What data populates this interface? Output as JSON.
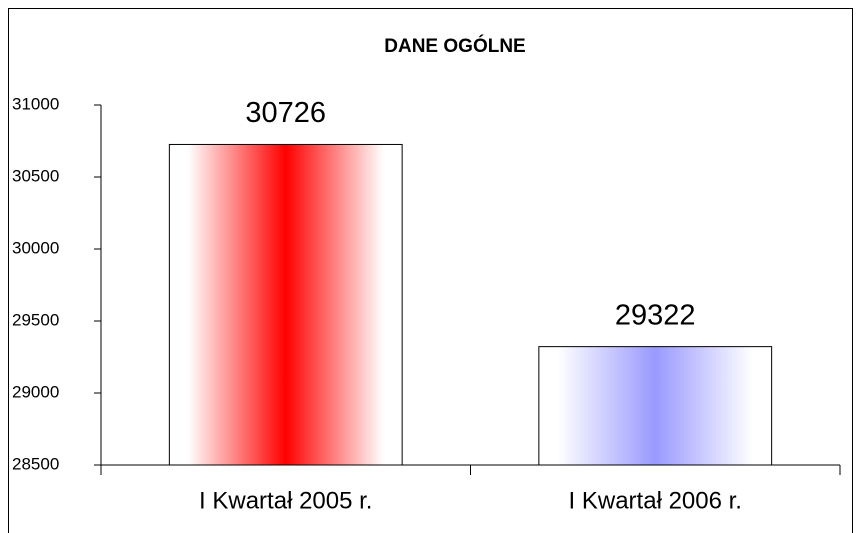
{
  "chart_data": {
    "type": "bar",
    "title": "DANE OGÓLNE",
    "categories": [
      "I Kwartał 2005 r.",
      "I Kwartał 2006 r."
    ],
    "values": [
      30726,
      29322
    ],
    "colors": [
      "#ff0000",
      "#9999ff"
    ],
    "ylim": [
      28500,
      31000
    ],
    "yticks": [
      28500,
      29000,
      29500,
      30000,
      30500,
      31000
    ],
    "grid": false
  }
}
